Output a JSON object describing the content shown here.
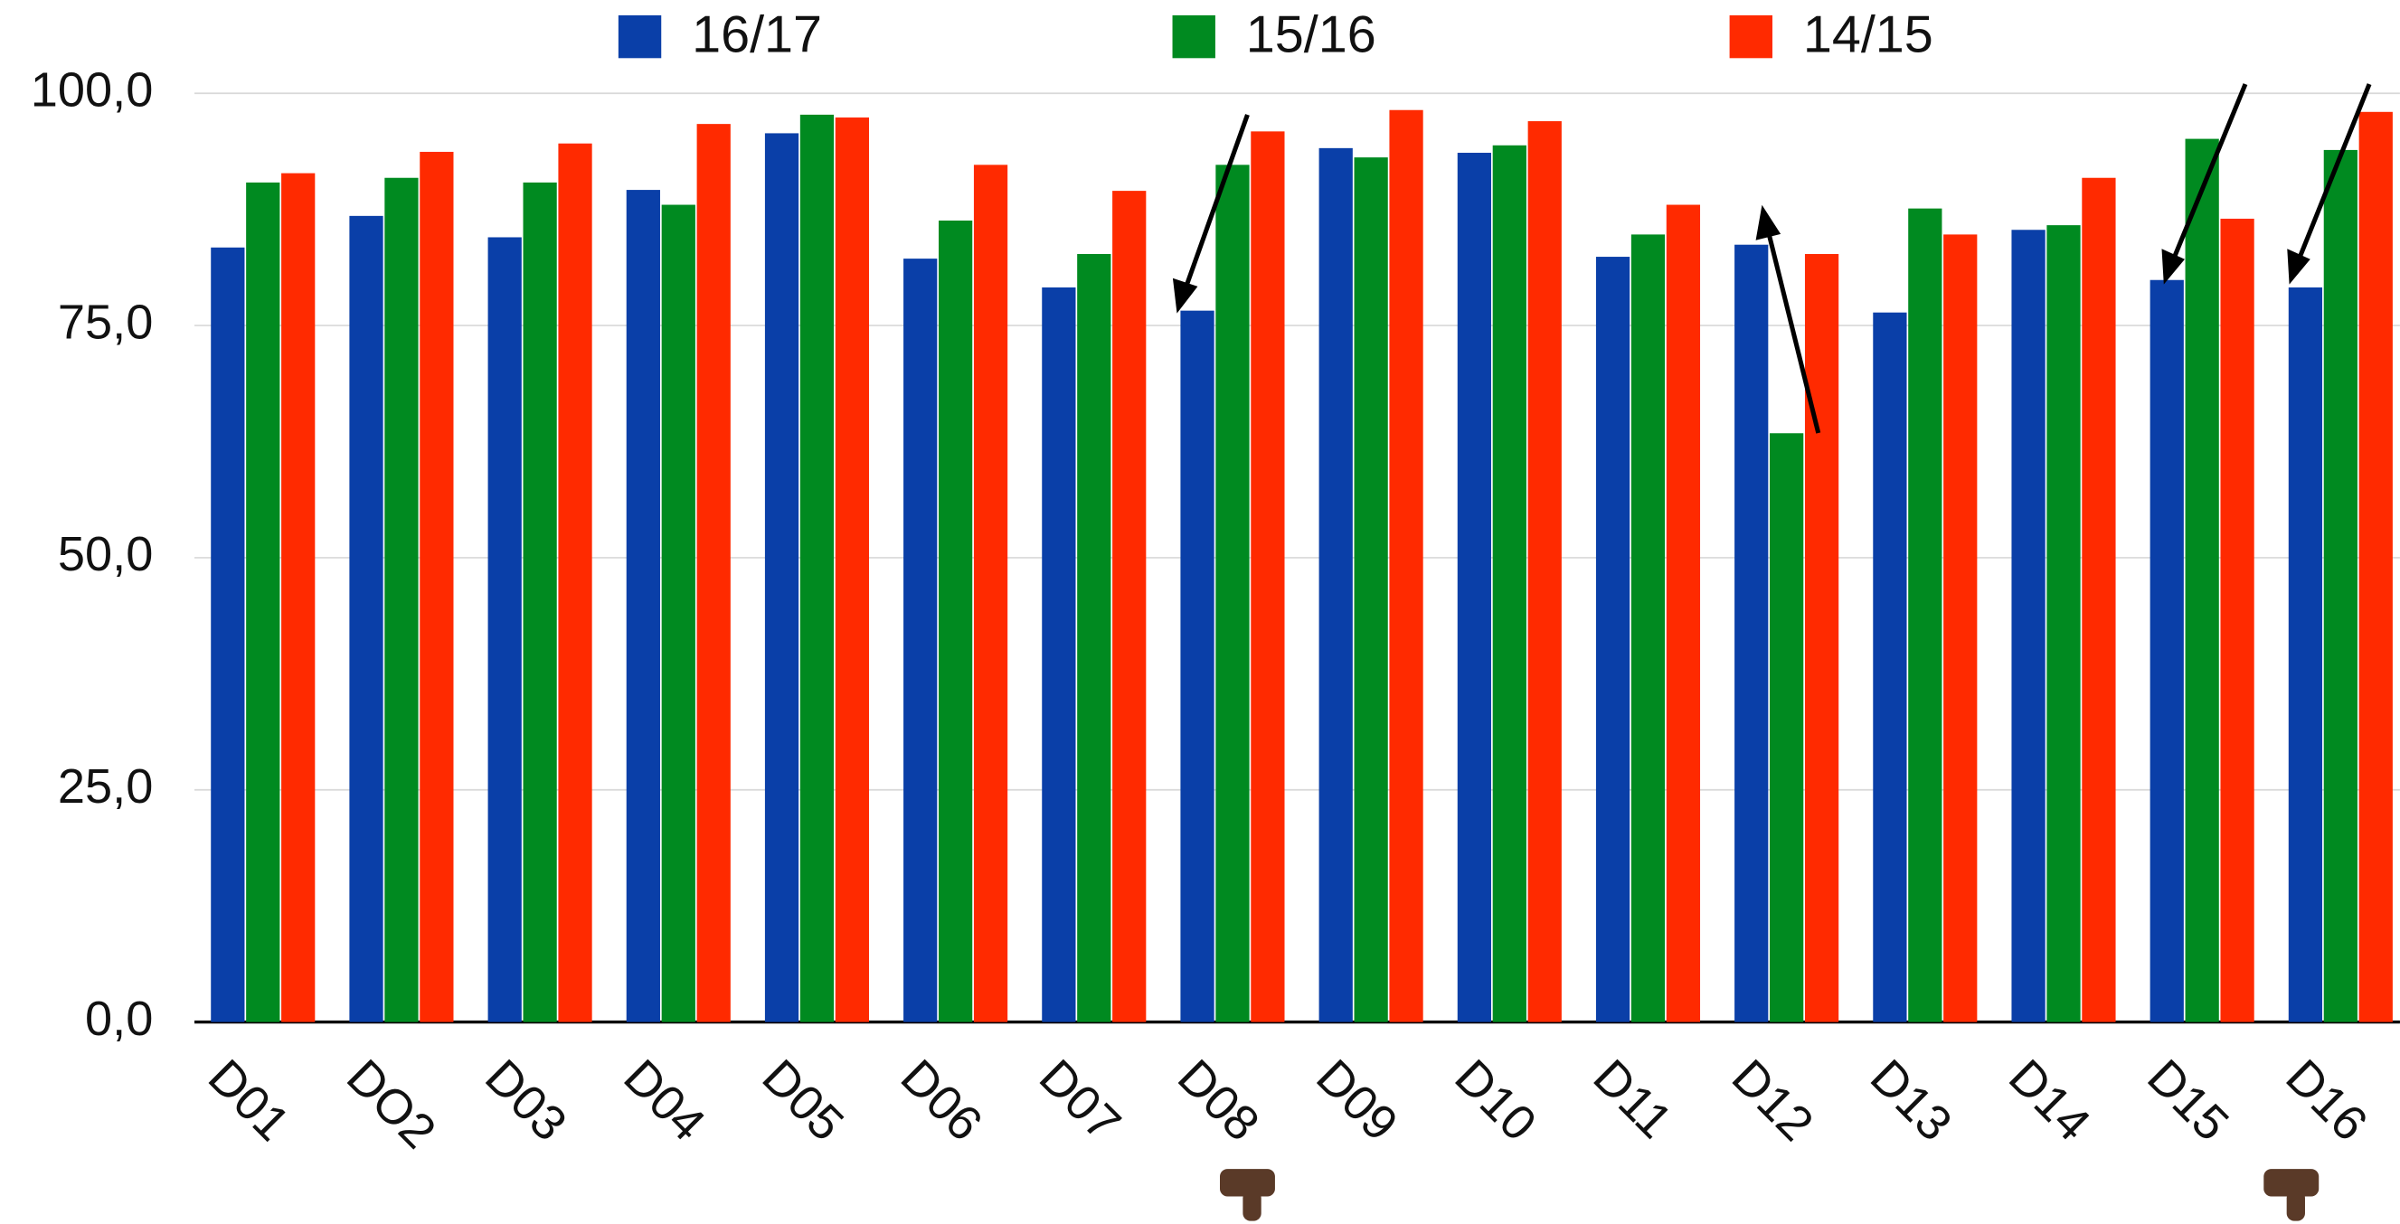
{
  "chart_data": {
    "type": "bar",
    "categories": [
      "D01",
      "DO2",
      "D03",
      "D04",
      "D05",
      "D06",
      "D07",
      "D08",
      "D09",
      "D10",
      "D11",
      "D12",
      "D13",
      "D14",
      "D15",
      "D16"
    ],
    "series": [
      {
        "name": "16/17",
        "color": "#0a3fa8",
        "values": [
          83.4,
          86.8,
          84.5,
          89.6,
          95.7,
          82.2,
          79.1,
          76.6,
          94.1,
          93.6,
          82.4,
          83.7,
          76.4,
          85.3,
          79.9,
          79.1
        ]
      },
      {
        "name": "15/16",
        "color": "#008a20",
        "values": [
          90.4,
          90.9,
          90.4,
          88.0,
          97.7,
          86.3,
          82.7,
          92.3,
          93.1,
          94.4,
          84.8,
          63.4,
          87.6,
          85.8,
          95.1,
          93.9
        ]
      },
      {
        "name": "14/15",
        "color": "#ff2a00",
        "values": [
          91.4,
          93.7,
          94.6,
          96.7,
          97.4,
          92.3,
          89.5,
          95.9,
          98.2,
          97.0,
          88.0,
          82.7,
          84.8,
          90.9,
          86.5,
          98.0
        ]
      }
    ],
    "ylim": [
      0,
      100
    ],
    "yticks": [
      {
        "value": 0,
        "label": "0,0"
      },
      {
        "value": 25,
        "label": "25,0"
      },
      {
        "value": 50,
        "label": "50,0"
      },
      {
        "value": 75,
        "label": "75,0"
      },
      {
        "value": 100,
        "label": "100,0"
      }
    ],
    "grid": true
  }
}
